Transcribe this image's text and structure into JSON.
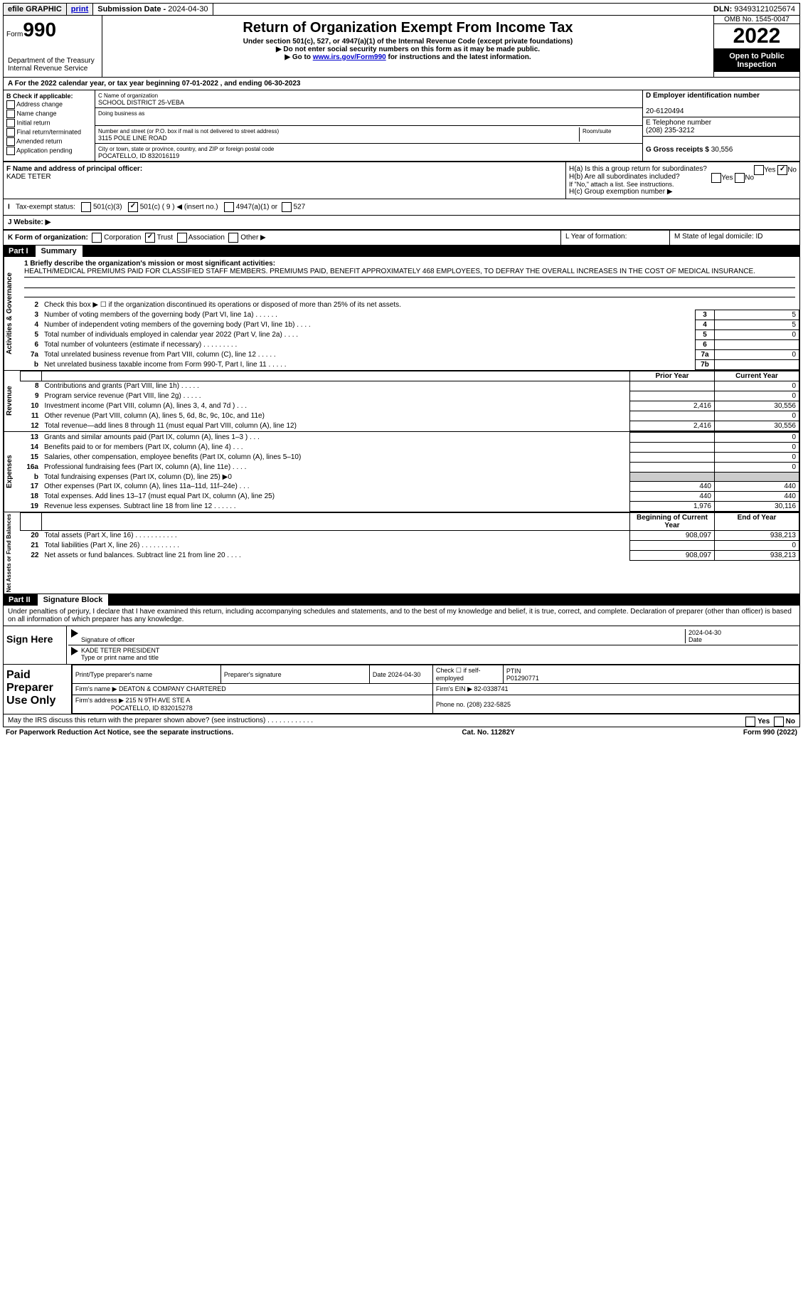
{
  "topbar": {
    "efile": "efile GRAPHIC",
    "print": "print",
    "subdate_lbl": "Submission Date - ",
    "subdate": "2024-04-30",
    "dln_lbl": "DLN: ",
    "dln": "93493121025674"
  },
  "header": {
    "form_word": "Form",
    "form_num": "990",
    "title": "Return of Organization Exempt From Income Tax",
    "sub1": "Under section 501(c), 527, or 4947(a)(1) of the Internal Revenue Code (except private foundations)",
    "sub2": "▶ Do not enter social security numbers on this form as it may be made public.",
    "sub3_pre": "▶ Go to ",
    "sub3_link": "www.irs.gov/Form990",
    "sub3_post": " for instructions and the latest information.",
    "omb": "OMB No. 1545-0047",
    "year": "2022",
    "inspect": "Open to Public Inspection",
    "dept": "Department of the Treasury Internal Revenue Service"
  },
  "row_a": "A For the 2022 calendar year, or tax year beginning 07-01-2022    , and ending 06-30-2023",
  "col_b": {
    "hdr": "B Check if applicable:",
    "items": [
      "Address change",
      "Name change",
      "Initial return",
      "Final return/terminated",
      "Amended return",
      "Application pending"
    ]
  },
  "col_c": {
    "c_lbl": "C Name of organization",
    "c_name": "SCHOOL DISTRICT 25-VEBA",
    "dba": "Doing business as",
    "addr_lbl": "Number and street (or P.O. box if mail is not delivered to street address)",
    "room": "Room/suite",
    "addr": "3115 POLE LINE ROAD",
    "city_lbl": "City or town, state or province, country, and ZIP or foreign postal code",
    "city": "POCATELLO, ID  832016119"
  },
  "col_de": {
    "d_lbl": "D Employer identification number",
    "d_val": "20-6120494",
    "e_lbl": "E Telephone number",
    "e_val": "(208) 235-3212",
    "g_lbl": "G Gross receipts $ ",
    "g_val": "30,556"
  },
  "lower": {
    "f_lbl": "F Name and address of principal officer:",
    "f_val": "KADE TETER",
    "ha": "H(a)  Is this a group return for subordinates?",
    "hb": "H(b)  Are all subordinates included?",
    "hb_note": "If \"No,\" attach a list. See instructions.",
    "hc": "H(c)  Group exemption number ▶",
    "yes": "Yes",
    "no": "No"
  },
  "tax_status": {
    "i": "I",
    "lbl": "Tax-exempt status:",
    "c3": "501(c)(3)",
    "c": "501(c) ( 9 ) ◀ (insert no.)",
    "a1": "4947(a)(1) or",
    "s527": "527"
  },
  "row_j": "J  Website: ▶",
  "row_k": {
    "k": "K Form of organization:",
    "corp": "Corporation",
    "trust": "Trust",
    "assoc": "Association",
    "other": "Other ▶",
    "l": "L Year of formation:",
    "m": "M State of legal domicile: ID"
  },
  "part1": {
    "hdr": "Part I",
    "sub": "Summary",
    "line1_lbl": "1  Briefly describe the organization's mission or most significant activities:",
    "mission": "HEALTH/MEDICAL PREMIUMS PAID FOR CLASSIFIED STAFF MEMBERS. PREMIUMS PAID, BENEFIT APPROXIMATELY 468 EMPLOYEES, TO DEFRAY THE OVERALL INCREASES IN THE COST OF MEDICAL INSURANCE.",
    "line2": "Check this box ▶ ☐  if the organization discontinued its operations or disposed of more than 25% of its net assets.",
    "vert1": "Activities & Governance",
    "vert2": "Revenue",
    "vert3": "Expenses",
    "vert4": "Net Assets or Fund Balances",
    "lines_top": [
      {
        "n": "3",
        "t": "Number of voting members of the governing body (Part VI, line 1a)  .    .    .    .    .    .",
        "box": "3",
        "v": "5"
      },
      {
        "n": "4",
        "t": "Number of independent voting members of the governing body (Part VI, line 1b) .    .    .    .",
        "box": "4",
        "v": "5"
      },
      {
        "n": "5",
        "t": "Total number of individuals employed in calendar year 2022 (Part V, line 2a) .    .    .    .",
        "box": "5",
        "v": "0"
      },
      {
        "n": "6",
        "t": "Total number of volunteers (estimate if necessary)    .    .    .    .    .    .    .    .    .",
        "box": "6",
        "v": ""
      },
      {
        "n": "7a",
        "t": "Total unrelated business revenue from Part VIII, column (C), line 12  .    .    .    .    .",
        "box": "7a",
        "v": "0"
      },
      {
        "n": "b",
        "t": "Net unrelated business taxable income from Form 990-T, Part I, line 11  .    .    .    .    .",
        "box": "7b",
        "v": ""
      }
    ],
    "prior": "Prior Year",
    "current": "Current Year",
    "lines_rev": [
      {
        "n": "8",
        "t": "Contributions and grants (Part VIII, line 1h)   .    .    .    .    .",
        "p": "",
        "c": "0"
      },
      {
        "n": "9",
        "t": "Program service revenue (Part VIII, line 2g)   .    .    .    .    .",
        "p": "",
        "c": "0"
      },
      {
        "n": "10",
        "t": "Investment income (Part VIII, column (A), lines 3, 4, and 7d )   .    .    .",
        "p": "2,416",
        "c": "30,556"
      },
      {
        "n": "11",
        "t": "Other revenue (Part VIII, column (A), lines 5, 6d, 8c, 9c, 10c, and 11e)",
        "p": "",
        "c": "0"
      },
      {
        "n": "12",
        "t": "Total revenue—add lines 8 through 11 (must equal Part VIII, column (A), line 12)",
        "p": "2,416",
        "c": "30,556"
      }
    ],
    "lines_exp": [
      {
        "n": "13",
        "t": "Grants and similar amounts paid (Part IX, column (A), lines 1–3 )  .    .    .",
        "p": "",
        "c": "0"
      },
      {
        "n": "14",
        "t": "Benefits paid to or for members (Part IX, column (A), line 4)  .    .    .",
        "p": "",
        "c": "0"
      },
      {
        "n": "15",
        "t": "Salaries, other compensation, employee benefits (Part IX, column (A), lines 5–10)",
        "p": "",
        "c": "0"
      },
      {
        "n": "16a",
        "t": "Professional fundraising fees (Part IX, column (A), line 11e)  .    .    .    .",
        "p": "",
        "c": "0"
      },
      {
        "n": "b",
        "t": "Total fundraising expenses (Part IX, column (D), line 25) ▶0",
        "p": "SHADE",
        "c": "SHADE"
      },
      {
        "n": "17",
        "t": "Other expenses (Part IX, column (A), lines 11a–11d, 11f–24e)   .    .    .",
        "p": "440",
        "c": "440"
      },
      {
        "n": "18",
        "t": "Total expenses. Add lines 13–17 (must equal Part IX, column (A), line 25)",
        "p": "440",
        "c": "440"
      },
      {
        "n": "19",
        "t": "Revenue less expenses. Subtract line 18 from line 12  .    .    .    .    .    .",
        "p": "1,976",
        "c": "30,116"
      }
    ],
    "beg": "Beginning of Current Year",
    "end": "End of Year",
    "lines_net": [
      {
        "n": "20",
        "t": "Total assets (Part X, line 16)  .    .    .    .    .    .    .    .    .    .    .",
        "p": "908,097",
        "c": "938,213"
      },
      {
        "n": "21",
        "t": "Total liabilities (Part X, line 26)  .    .    .    .    .    .    .    .    .    .",
        "p": "",
        "c": "0"
      },
      {
        "n": "22",
        "t": "Net assets or fund balances. Subtract line 21 from line 20  .    .    .    .",
        "p": "908,097",
        "c": "938,213"
      }
    ]
  },
  "part2": {
    "hdr": "Part II",
    "sub": "Signature Block",
    "decl": "Under penalties of perjury, I declare that I have examined this return, including accompanying schedules and statements, and to the best of my knowledge and belief, it is true, correct, and complete. Declaration of preparer (other than officer) is based on all information of which preparer has any knowledge.",
    "sign_here": "Sign Here",
    "sig_officer": "Signature of officer",
    "sig_date": "2024-04-30",
    "date_lbl": "Date",
    "name": "KADE TETER  PRESIDENT",
    "name_lbl": "Type or print name and title",
    "paid": "Paid Preparer Use Only",
    "p_name_lbl": "Print/Type preparer's name",
    "p_sig_lbl": "Preparer's signature",
    "p_date": "Date 2024-04-30",
    "p_check": "Check ☐ if self-employed",
    "ptin_lbl": "PTIN",
    "ptin": "P01290771",
    "firm_name_lbl": "Firm's name    ▶ ",
    "firm_name": "DEATON & COMPANY CHARTERED",
    "firm_ein_lbl": "Firm's EIN ▶ ",
    "firm_ein": "82-0338741",
    "firm_addr_lbl": "Firm's address ▶ ",
    "firm_addr": "215 N 9TH AVE STE A",
    "firm_city": "POCATELLO, ID  832015278",
    "phone_lbl": "Phone no. ",
    "phone": "(208) 232-5825",
    "discuss": "May the IRS discuss this return with the preparer shown above? (see instructions)   .    .    .    .    .    .    .    .    .    .    .    .",
    "yes": "Yes",
    "no": "No"
  },
  "footer": {
    "l": "For Paperwork Reduction Act Notice, see the separate instructions.",
    "c": "Cat. No. 11282Y",
    "r": "Form 990 (2022)"
  }
}
